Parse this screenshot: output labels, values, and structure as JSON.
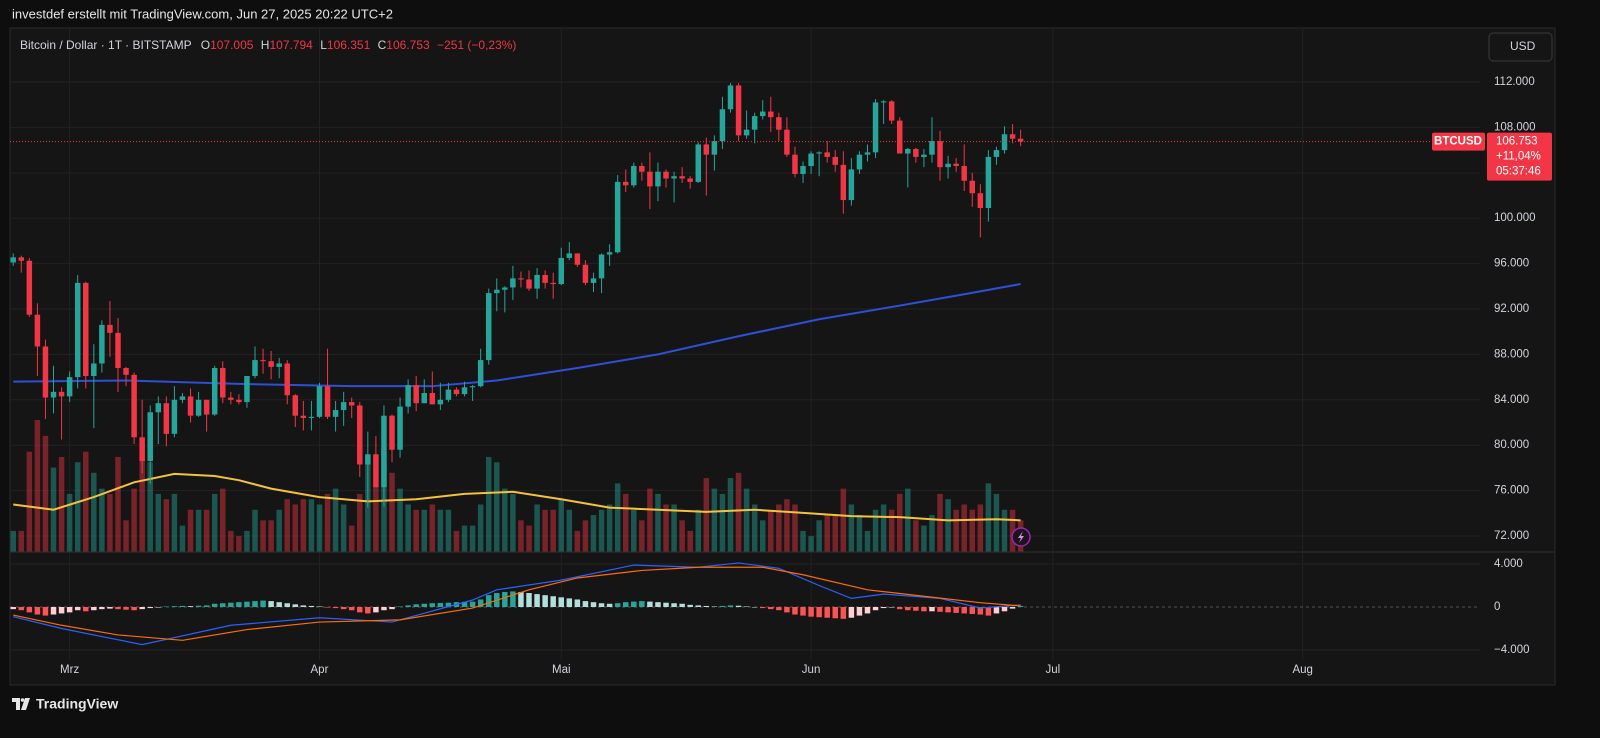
{
  "header": "investdef erstellt mit TradingView.com, Jun 27, 2025 20:22 UTC+2",
  "footer": "TradingView",
  "currency": "USD",
  "chart_data": [
    {
      "type": "candlestick",
      "title": "Bitcoin / Dollar · 1T · BITSTAMP",
      "ohlc_legend": [
        {
          "label": "O",
          "value": "107.005"
        },
        {
          "label": "H",
          "value": "107.794"
        },
        {
          "label": "L",
          "value": "106.351"
        },
        {
          "label": "C",
          "value": "106.753"
        }
      ],
      "change": "−251 (−0,23%)",
      "symbol": "BTCUSD",
      "last_price_label": "106.753",
      "last_change": "+11,04%",
      "countdown": "05:37:46",
      "up_color": "#26a69a",
      "down_color": "#f23645",
      "grid": true,
      "xlim": [
        -0.4,
        182
      ],
      "xticks": [
        {
          "value": 7,
          "label": "Mrz"
        },
        {
          "value": 38,
          "label": "Apr"
        },
        {
          "value": 68,
          "label": "Mai"
        },
        {
          "value": 99,
          "label": "Jun"
        },
        {
          "value": 129,
          "label": "Jul"
        },
        {
          "value": 160,
          "label": "Aug"
        }
      ],
      "ylim": [
        70590,
        116760
      ],
      "yticks": [
        {
          "value": 72000,
          "label": "72.000"
        },
        {
          "value": 76000,
          "label": "76.000"
        },
        {
          "value": 80000,
          "label": "80.000"
        },
        {
          "value": 84000,
          "label": "84.000"
        },
        {
          "value": 88000,
          "label": "88.000"
        },
        {
          "value": 92000,
          "label": "92.000"
        },
        {
          "value": 96000,
          "label": "96.000"
        },
        {
          "value": 100000,
          "label": "100.000"
        },
        {
          "value": 104000,
          "label": "104.000"
        },
        {
          "value": 108000,
          "label": "108.000"
        },
        {
          "value": 112000,
          "label": "112.000"
        }
      ],
      "open": [
        96100,
        96550,
        96250,
        91500,
        88700,
        84200,
        84700,
        84300,
        86000,
        94300,
        86100,
        87200,
        90600,
        89900,
        86800,
        86200,
        80700,
        78600,
        82900,
        83700,
        81000,
        84000,
        84300,
        82600,
        84000,
        82700,
        86800,
        84200,
        84000,
        83800,
        86100,
        87500,
        87400,
        86900,
        87200,
        84400,
        82600,
        82400,
        82500,
        85200,
        82500,
        83100,
        83800,
        83500,
        78300,
        79200,
        76300,
        82600,
        79600,
        83400,
        85300,
        83700,
        84600,
        83600,
        84000,
        84900,
        84500,
        85100,
        85200,
        87500,
        93400,
        93700,
        93900,
        94700,
        94600,
        93800,
        95000,
        94300,
        94200,
        96500,
        96900,
        95900,
        94300,
        94700,
        96800,
        97000,
        103200,
        102900,
        104600,
        104100,
        102800,
        104100,
        103500,
        103700,
        103500,
        103200,
        106500,
        105600,
        106800,
        109600,
        111700,
        107300,
        107800,
        109000,
        109400,
        108900,
        107800,
        105600,
        103900,
        104600,
        105700,
        105800,
        105400,
        104700,
        101600,
        104300,
        105600,
        105800,
        110200,
        110300,
        108600,
        105700,
        106100,
        105400,
        105600,
        106800,
        104500,
        104800,
        104600,
        103300,
        102200,
        100900,
        105400,
        106000,
        107400,
        107005
      ],
      "high": [
        96900,
        96700,
        96500,
        92500,
        89300,
        87000,
        85100,
        86500,
        95000,
        94400,
        88900,
        91000,
        92700,
        91200,
        86900,
        86400,
        84000,
        83500,
        84300,
        84300,
        85200,
        84600,
        85000,
        84700,
        84000,
        87000,
        87400,
        84700,
        84500,
        86100,
        88700,
        88500,
        88300,
        87700,
        87500,
        84500,
        83900,
        83900,
        85500,
        88500,
        83900,
        84700,
        84200,
        83800,
        81200,
        80800,
        83500,
        82700,
        84200,
        85800,
        86100,
        85800,
        86500,
        85500,
        85500,
        85100,
        85600,
        85300,
        88500,
        93800,
        94700,
        94000,
        95800,
        95300,
        95400,
        95600,
        95400,
        95200,
        97400,
        97900,
        96900,
        96300,
        95200,
        96900,
        97700,
        103800,
        104300,
        104900,
        104900,
        105800,
        104900,
        104300,
        104100,
        104500,
        103700,
        106700,
        107100,
        107300,
        110700,
        111900,
        111900,
        109500,
        109300,
        110400,
        110700,
        109300,
        108900,
        106300,
        105000,
        105900,
        105900,
        106800,
        106000,
        105900,
        105300,
        105900,
        106500,
        110500,
        110400,
        110400,
        108900,
        106200,
        106200,
        106100,
        108900,
        107700,
        105500,
        105300,
        106500,
        104000,
        103000,
        106000,
        106300,
        108100,
        108300,
        107794
      ],
      "low": [
        95800,
        95200,
        91300,
        86100,
        82300,
        82800,
        80500,
        83800,
        85000,
        85000,
        81500,
        86400,
        87800,
        84700,
        85200,
        80100,
        77500,
        76600,
        80100,
        79900,
        80700,
        83700,
        82000,
        82500,
        81200,
        82600,
        83700,
        83600,
        83600,
        83300,
        85900,
        86300,
        85800,
        85900,
        83600,
        81600,
        81300,
        81300,
        82400,
        82300,
        81200,
        81700,
        82400,
        77200,
        74500,
        76300,
        74600,
        78500,
        78900,
        82800,
        83000,
        83700,
        83600,
        83100,
        83800,
        84300,
        84300,
        83900,
        85100,
        87100,
        91800,
        91700,
        92800,
        93900,
        93600,
        92900,
        93800,
        92900,
        94100,
        96300,
        95700,
        94100,
        93500,
        93400,
        95800,
        96900,
        102300,
        102700,
        103300,
        100800,
        101500,
        102700,
        101400,
        103100,
        102600,
        103100,
        102000,
        104200,
        106100,
        109300,
        106800,
        107000,
        106600,
        108700,
        107600,
        106800,
        105400,
        103600,
        103100,
        103900,
        103700,
        104900,
        104100,
        100400,
        101100,
        103900,
        105000,
        105300,
        108300,
        108300,
        105700,
        102700,
        104900,
        104500,
        104900,
        103300,
        103500,
        104100,
        102400,
        101000,
        98300,
        99700,
        104700,
        105700,
        106600,
        106351
      ],
      "close": [
        96550,
        96250,
        91500,
        88700,
        84200,
        84700,
        84300,
        86000,
        94300,
        86100,
        87200,
        90600,
        89900,
        86800,
        86200,
        80700,
        78600,
        82900,
        83700,
        81000,
        84000,
        84300,
        82600,
        84000,
        82700,
        86800,
        84200,
        84000,
        83800,
        86100,
        87500,
        87400,
        86900,
        87200,
        84400,
        82600,
        82400,
        82500,
        85200,
        82500,
        83100,
        83800,
        83500,
        78300,
        79200,
        76300,
        82600,
        79600,
        83400,
        85300,
        83700,
        84600,
        83600,
        84000,
        84900,
        84500,
        85100,
        85200,
        87500,
        93400,
        93700,
        93900,
        94700,
        94600,
        93800,
        95000,
        94300,
        94200,
        96500,
        96900,
        95900,
        94300,
        94700,
        96800,
        97000,
        103200,
        102900,
        104600,
        104100,
        102800,
        104100,
        103500,
        103700,
        103500,
        103200,
        106500,
        105600,
        106800,
        109600,
        111700,
        107300,
        107800,
        109000,
        109400,
        108900,
        107800,
        105600,
        103900,
        104600,
        105700,
        105800,
        105400,
        104700,
        101600,
        104300,
        105600,
        105800,
        110200,
        110300,
        108600,
        105700,
        106100,
        105400,
        105600,
        106800,
        104500,
        104800,
        104600,
        103300,
        102200,
        100900,
        105400,
        106000,
        107400,
        107005,
        106753
      ],
      "volume": [
        20,
        20,
        95,
        125,
        110,
        80,
        90,
        55,
        85,
        95,
        75,
        60,
        55,
        90,
        30,
        60,
        100,
        85,
        55,
        50,
        55,
        25,
        40,
        40,
        40,
        55,
        60,
        20,
        15,
        20,
        40,
        30,
        30,
        40,
        50,
        45,
        50,
        50,
        45,
        55,
        60,
        45,
        25,
        55,
        85,
        65,
        95,
        75,
        60,
        45,
        40,
        40,
        45,
        40,
        40,
        20,
        25,
        25,
        45,
        90,
        85,
        60,
        55,
        30,
        25,
        45,
        40,
        40,
        50,
        40,
        20,
        30,
        35,
        40,
        45,
        65,
        55,
        40,
        30,
        60,
        55,
        45,
        45,
        30,
        20,
        40,
        70,
        60,
        55,
        70,
        75,
        60,
        45,
        30,
        40,
        45,
        50,
        45,
        20,
        15,
        30,
        35,
        35,
        60,
        45,
        35,
        20,
        40,
        45,
        40,
        55,
        60,
        30,
        25,
        35,
        55,
        50,
        40,
        45,
        40,
        45,
        65,
        55,
        40,
        40,
        30
      ],
      "volume_ma": {
        "color": "#f5c33b",
        "x": [
          0,
          5,
          10,
          15,
          20,
          25,
          28,
          32,
          38,
          44,
          50,
          56,
          62,
          68,
          74,
          80,
          86,
          92,
          98,
          104,
          110,
          116,
          122,
          125
        ],
        "values": [
          45,
          40,
          52,
          66,
          74,
          72,
          68,
          60,
          52,
          48,
          50,
          55,
          57,
          50,
          42,
          40,
          38,
          40,
          37,
          34,
          33,
          30,
          31,
          30
        ]
      },
      "lines": [
        {
          "color": "#2f4fd6",
          "x": [
            0,
            14,
            28,
            42,
            52,
            60,
            70,
            80,
            90,
            100,
            110,
            118,
            125
          ],
          "values": [
            85600,
            85700,
            85400,
            85200,
            85200,
            85700,
            86800,
            88000,
            89600,
            91100,
            92300,
            93300,
            94200
          ]
        }
      ]
    },
    {
      "type": "macd",
      "ylim": [
        -4930,
        5116
      ],
      "yticks": [
        {
          "value": 4000,
          "label": "4.000"
        },
        0,
        {
          "value": -4000,
          "label": "−4.000"
        }
      ],
      "hist_colors": {
        "grow_above": "#26a69a",
        "fall_above": "#b2dfdb",
        "grow_below": "#ffcdd2",
        "fall_below": "#ff5252"
      },
      "histogram": [
        -200,
        -300,
        -500,
        -700,
        -800,
        -700,
        -600,
        -500,
        -300,
        -400,
        -300,
        -200,
        -150,
        -200,
        -250,
        -300,
        -200,
        -100,
        -50,
        50,
        80,
        100,
        80,
        120,
        150,
        300,
        350,
        400,
        450,
        500,
        550,
        600,
        550,
        450,
        350,
        250,
        150,
        100,
        50,
        -50,
        -100,
        -200,
        -300,
        -500,
        -600,
        -500,
        -300,
        -200,
        50,
        150,
        250,
        300,
        350,
        380,
        400,
        450,
        480,
        500,
        700,
        1100,
        1300,
        1400,
        1450,
        1400,
        1300,
        1200,
        1100,
        1000,
        900,
        800,
        700,
        550,
        450,
        350,
        300,
        350,
        450,
        500,
        550,
        500,
        450,
        400,
        350,
        300,
        200,
        150,
        100,
        50,
        100,
        150,
        120,
        50,
        0,
        -100,
        -200,
        -300,
        -500,
        -700,
        -800,
        -900,
        -950,
        -1000,
        -1050,
        -1100,
        -1000,
        -800,
        -600,
        -300,
        -100,
        -50,
        -200,
        -300,
        -350,
        -400,
        -400,
        -450,
        -500,
        -550,
        -600,
        -650,
        -700,
        -800,
        -600,
        -400,
        -150,
        100
      ],
      "series": [
        {
          "color": "#2962ff",
          "x": [
            0,
            6,
            16,
            27,
            38,
            47,
            57,
            60,
            68,
            77,
            85,
            90,
            95,
            100,
            104,
            108,
            115,
            120,
            125
          ],
          "values": [
            -900,
            -2000,
            -3500,
            -1700,
            -1000,
            -1400,
            650,
            1600,
            2500,
            3900,
            3700,
            4100,
            3600,
            2000,
            800,
            1200,
            800,
            -100,
            200
          ]
        },
        {
          "color": "#ff6d00",
          "x": [
            0,
            6,
            13,
            21,
            29,
            38,
            48,
            57,
            64,
            70,
            78,
            85,
            93,
            98,
            106,
            113,
            120,
            125
          ],
          "values": [
            -750,
            -1700,
            -2600,
            -3100,
            -2100,
            -1400,
            -1200,
            -100,
            1600,
            2700,
            3400,
            3700,
            3700,
            3000,
            1600,
            1000,
            400,
            100
          ]
        }
      ]
    }
  ]
}
